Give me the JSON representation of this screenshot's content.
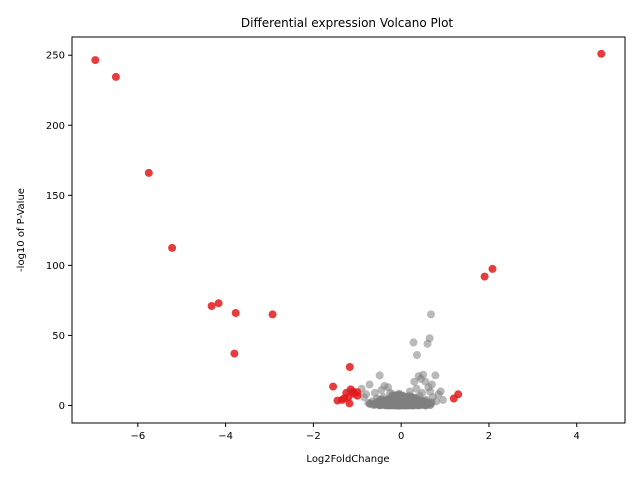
{
  "chart_data": {
    "type": "scatter",
    "title": "Differential expression Volcano Plot",
    "xlabel": "Log2FoldChange",
    "ylabel": "-log10 of P-Value",
    "xlim": [
      -7.5,
      5.1
    ],
    "ylim": [
      -12.5,
      263
    ],
    "xticks": [
      -6,
      -4,
      -2,
      0,
      2,
      4
    ],
    "yticks": [
      0,
      50,
      100,
      150,
      200,
      250
    ],
    "grid": false,
    "colors": {
      "significant": "#e31a1c",
      "not_significant": "#808080"
    },
    "series": [
      {
        "points": [
          [
            -6.97,
            246.5
          ],
          [
            -6.5,
            234.5
          ],
          [
            -5.75,
            166
          ],
          [
            -5.22,
            112.5
          ],
          [
            -4.32,
            71
          ],
          [
            -4.16,
            73
          ],
          [
            -3.77,
            66
          ],
          [
            -3.8,
            37
          ],
          [
            -2.93,
            65
          ],
          [
            -1.17,
            27.5
          ],
          [
            -1.55,
            13.5
          ],
          [
            -1.45,
            3.5
          ],
          [
            -1.3,
            5
          ],
          [
            -1.25,
            9
          ],
          [
            -1.2,
            6
          ],
          [
            -1.15,
            11.5
          ],
          [
            -1.1,
            10
          ],
          [
            -1.0,
            7
          ],
          [
            -1.18,
            1.5
          ],
          [
            -1.08,
            8.5
          ],
          [
            -1.35,
            4
          ],
          [
            -1.0,
            9.5
          ],
          [
            4.56,
            251
          ],
          [
            2.08,
            97.5
          ],
          [
            1.9,
            92
          ],
          [
            1.3,
            8
          ],
          [
            1.2,
            5
          ]
        ]
      },
      {
        "points": [
          [
            0.68,
            65
          ],
          [
            0.65,
            48
          ],
          [
            0.6,
            44
          ],
          [
            0.28,
            45
          ],
          [
            0.36,
            36
          ],
          [
            0.5,
            22
          ],
          [
            0.4,
            21
          ],
          [
            0.78,
            21.5
          ],
          [
            -0.49,
            21.5
          ],
          [
            0.45,
            19
          ],
          [
            -0.72,
            15
          ],
          [
            -0.38,
            14
          ],
          [
            -0.3,
            13
          ],
          [
            0.7,
            15
          ],
          [
            0.3,
            17
          ],
          [
            0.55,
            17
          ],
          [
            0.62,
            13
          ],
          [
            -0.9,
            12
          ],
          [
            0.9,
            10
          ],
          [
            0.85,
            8
          ],
          [
            0.95,
            4
          ],
          [
            -0.85,
            6
          ],
          [
            -0.6,
            9
          ],
          [
            -0.45,
            11
          ],
          [
            -0.2,
            8
          ],
          [
            0.2,
            10
          ],
          [
            0.35,
            12
          ],
          [
            0.8,
            3
          ],
          [
            -0.75,
            2
          ],
          [
            -0.55,
            5
          ],
          [
            -0.3,
            3
          ],
          [
            -0.1,
            2
          ],
          [
            0.0,
            1
          ],
          [
            0.1,
            3
          ],
          [
            0.25,
            5
          ],
          [
            0.42,
            7
          ],
          [
            0.58,
            4
          ],
          [
            0.72,
            6
          ],
          [
            -0.65,
            3
          ],
          [
            -0.4,
            6
          ],
          [
            -0.15,
            4
          ],
          [
            0.15,
            2
          ],
          [
            0.48,
            9
          ],
          [
            -0.8,
            8
          ],
          [
            -0.25,
            9
          ],
          [
            0.05,
            5
          ],
          [
            0.32,
            3
          ],
          [
            0.66,
            10
          ],
          [
            -0.5,
            1
          ],
          [
            0.2,
            0.5
          ]
        ]
      }
    ]
  }
}
